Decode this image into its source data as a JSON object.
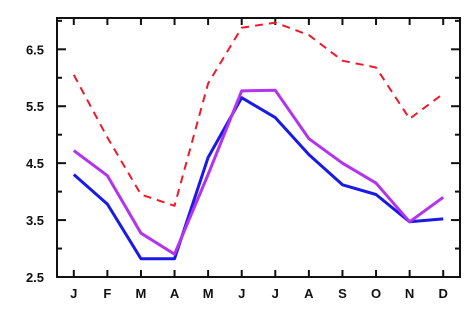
{
  "chart_data": {
    "type": "line",
    "title": "",
    "xlabel": "",
    "ylabel": "",
    "categories": [
      "J",
      "F",
      "M",
      "A",
      "M",
      "J",
      "J",
      "A",
      "S",
      "O",
      "N",
      "D"
    ],
    "ylim": [
      2.5,
      7.05
    ],
    "yticks_major": [
      2.5,
      3.5,
      4.5,
      5.5,
      6.5
    ],
    "yticks_major_labels": [
      "2.5",
      "3.5",
      "4.5",
      "5.5",
      "6.5"
    ],
    "yticks_minor": [
      3.0,
      4.0,
      5.0,
      6.0,
      7.0
    ],
    "grid": false,
    "legend": "none",
    "series": [
      {
        "color": "#1a1ae6",
        "dash": "solid",
        "values": [
          4.3,
          3.78,
          2.82,
          2.82,
          4.6,
          5.65,
          5.3,
          4.65,
          4.12,
          3.95,
          3.47,
          3.52
        ]
      },
      {
        "color": "#b333ee",
        "dash": "solid",
        "values": [
          4.72,
          4.28,
          3.27,
          2.9,
          4.3,
          5.77,
          5.78,
          4.93,
          4.5,
          4.15,
          3.47,
          3.9
        ]
      },
      {
        "color": "#ee1a2a",
        "dash": "dashed",
        "values": [
          6.05,
          4.95,
          3.95,
          3.75,
          5.9,
          6.88,
          6.97,
          6.75,
          6.3,
          6.18,
          5.28,
          5.72
        ]
      }
    ]
  }
}
